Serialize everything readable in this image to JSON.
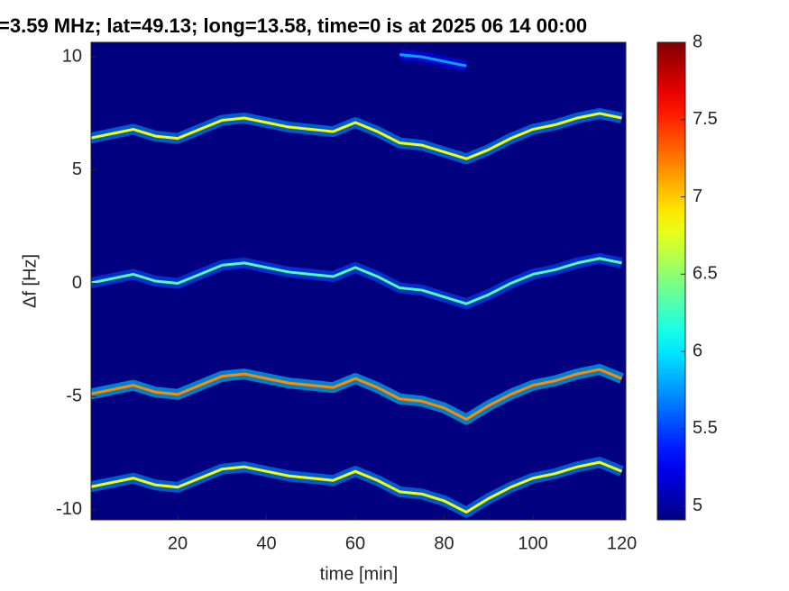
{
  "chart_data": {
    "type": "spectrogram",
    "title": "=3.59 MHz;  lat=49.13; long=13.58, time=0 is at 2025 06 14 00:00",
    "xlabel": "time [min]",
    "ylabel": "Δf [Hz]",
    "x": [
      0,
      5,
      10,
      15,
      20,
      25,
      30,
      35,
      40,
      45,
      50,
      55,
      60,
      65,
      70,
      75,
      80,
      85,
      90,
      95,
      100,
      105,
      110,
      115,
      120
    ],
    "traces": [
      {
        "intensity": 6.8,
        "values": [
          6.4,
          6.6,
          6.8,
          6.5,
          6.4,
          6.8,
          7.2,
          7.3,
          7.1,
          6.9,
          6.8,
          6.7,
          7.1,
          6.7,
          6.2,
          6.1,
          5.8,
          5.5,
          5.9,
          6.4,
          6.8,
          7.0,
          7.3,
          7.5,
          7.3
        ]
      },
      {
        "intensity": 6.3,
        "values": [
          0.0,
          0.2,
          0.4,
          0.1,
          0.0,
          0.4,
          0.8,
          0.9,
          0.7,
          0.5,
          0.4,
          0.3,
          0.7,
          0.3,
          -0.2,
          -0.3,
          -0.6,
          -0.9,
          -0.5,
          0.0,
          0.4,
          0.6,
          0.9,
          1.1,
          0.9
        ]
      },
      {
        "intensity": 7.2,
        "values": [
          -4.9,
          -4.7,
          -4.5,
          -4.8,
          -4.9,
          -4.5,
          -4.1,
          -4.0,
          -4.2,
          -4.4,
          -4.5,
          -4.6,
          -4.2,
          -4.6,
          -5.1,
          -5.2,
          -5.5,
          -6.0,
          -5.4,
          -4.9,
          -4.5,
          -4.3,
          -4.0,
          -3.8,
          -4.2
        ]
      },
      {
        "intensity": 6.8,
        "values": [
          -9.0,
          -8.8,
          -8.6,
          -8.9,
          -9.0,
          -8.6,
          -8.2,
          -8.1,
          -8.3,
          -8.5,
          -8.6,
          -8.7,
          -8.3,
          -8.7,
          -9.2,
          -9.3,
          -9.6,
          -10.1,
          -9.5,
          -9.0,
          -8.6,
          -8.4,
          -8.1,
          -7.9,
          -8.3
        ]
      },
      {
        "intensity": 5.8,
        "values": [
          null,
          null,
          null,
          null,
          null,
          null,
          null,
          null,
          null,
          null,
          null,
          null,
          null,
          null,
          10.1,
          10.0,
          9.8,
          9.6,
          null,
          null,
          null,
          null,
          null,
          null,
          null
        ]
      }
    ],
    "xlim": [
      0.5,
      120.9
    ],
    "xticks": [
      20,
      40,
      60,
      80,
      100,
      120
    ],
    "ylim": [
      -10.44,
      10.64
    ],
    "yticks": [
      -10,
      -5,
      0,
      5,
      10
    ],
    "clim": [
      4.91,
      8
    ],
    "cticks": [
      5,
      5.5,
      6,
      6.5,
      7,
      7.5,
      8
    ],
    "colormap": "jet"
  }
}
